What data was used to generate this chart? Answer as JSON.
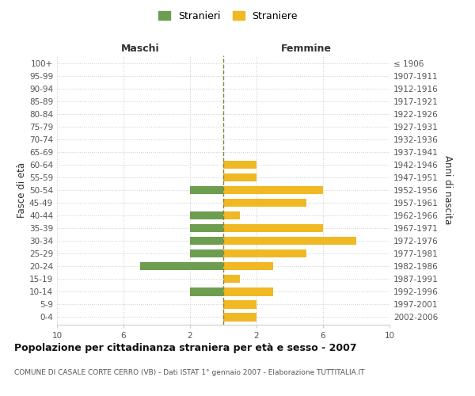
{
  "age_groups": [
    "0-4",
    "5-9",
    "10-14",
    "15-19",
    "20-24",
    "25-29",
    "30-34",
    "35-39",
    "40-44",
    "45-49",
    "50-54",
    "55-59",
    "60-64",
    "65-69",
    "70-74",
    "75-79",
    "80-84",
    "85-89",
    "90-94",
    "95-99",
    "100+"
  ],
  "birth_years": [
    "2002-2006",
    "1997-2001",
    "1992-1996",
    "1987-1991",
    "1982-1986",
    "1977-1981",
    "1972-1976",
    "1967-1971",
    "1962-1966",
    "1957-1961",
    "1952-1956",
    "1947-1951",
    "1942-1946",
    "1937-1941",
    "1932-1936",
    "1927-1931",
    "1922-1926",
    "1917-1921",
    "1912-1916",
    "1907-1911",
    "≤ 1906"
  ],
  "males": [
    0,
    0,
    2,
    0,
    5,
    2,
    2,
    2,
    2,
    0,
    2,
    0,
    0,
    0,
    0,
    0,
    0,
    0,
    0,
    0,
    0
  ],
  "females": [
    2,
    2,
    3,
    1,
    3,
    5,
    8,
    6,
    1,
    5,
    6,
    2,
    2,
    0,
    0,
    0,
    0,
    0,
    0,
    0,
    0
  ],
  "male_color": "#6d9e4f",
  "female_color": "#f0b823",
  "center_line_color": "#888844",
  "title": "Popolazione per cittadinanza straniera per età e sesso - 2007",
  "subtitle": "COMUNE DI CASALE CORTE CERRO (VB) - Dati ISTAT 1° gennaio 2007 - Elaborazione TUTTITALIA.IT",
  "ylabel_left": "Fasce di età",
  "ylabel_right": "Anni di nascita",
  "xlabel_left": "Maschi",
  "xlabel_right": "Femmine",
  "legend_males": "Stranieri",
  "legend_females": "Straniere",
  "xlim": 10,
  "background_color": "#ffffff",
  "grid_color": "#cccccc"
}
